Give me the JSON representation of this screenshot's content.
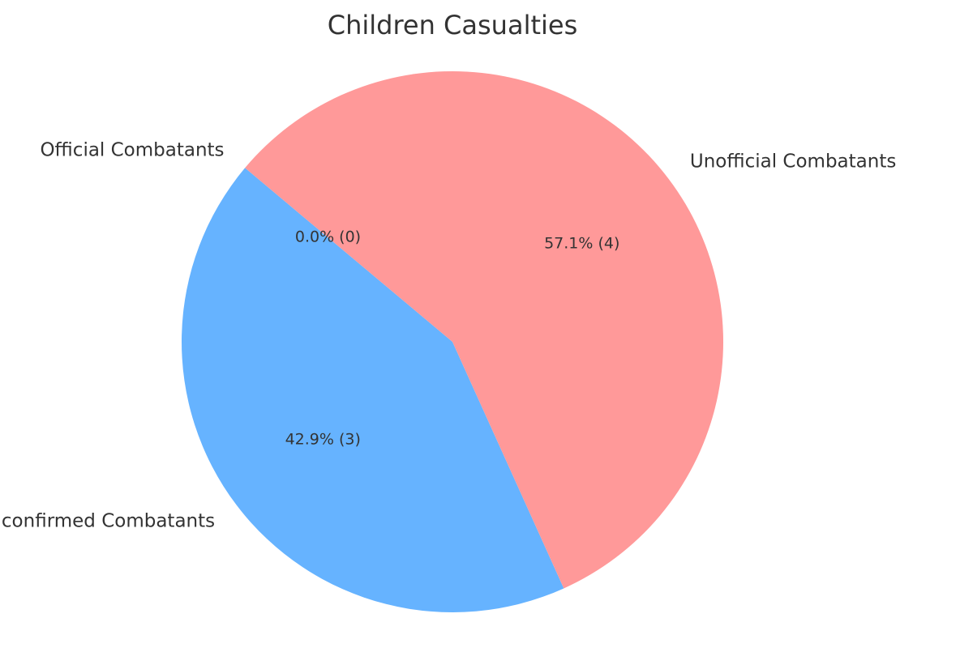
{
  "chart_data": {
    "type": "pie",
    "title": "Children Casualties",
    "slices": [
      {
        "label": "Official Combatants",
        "value": 0,
        "percent_label": "0.0% (0)",
        "color": "#66B3FF"
      },
      {
        "label": "Civilians/Unconfirmed Combatants",
        "value": 3,
        "percent_label": "42.9% (3)",
        "color": "#66B3FF"
      },
      {
        "label": "Unofficial Combatants",
        "value": 4,
        "percent_label": "57.1% (4)",
        "color": "#FF9999"
      }
    ],
    "start_angle_deg": 140,
    "direction": "counterclockwise"
  }
}
